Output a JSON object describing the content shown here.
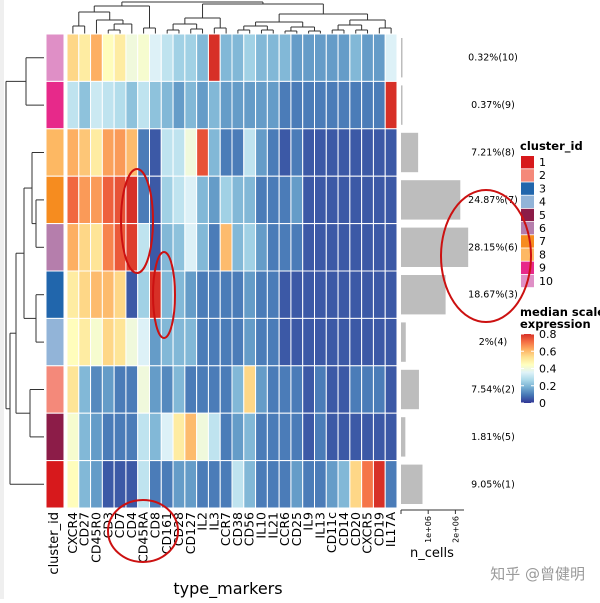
{
  "chart_data": {
    "type": "heatmap",
    "x_axis_title": "type_markers",
    "markers": [
      "CXCR4",
      "CD27",
      "CD45R0",
      "CD3",
      "CD7",
      "CD4",
      "CD45RA",
      "CD8",
      "CD161",
      "CD28",
      "CD127",
      "IL2",
      "IL3",
      "CCR7",
      "CD38",
      "CD56",
      "IL10",
      "IL21",
      "CCR6",
      "CD25",
      "IL9",
      "IL13",
      "CD11c",
      "CD14",
      "CD20",
      "CXCR5",
      "CD19",
      "IL17A"
    ],
    "clusters": [
      "10",
      "9",
      "8",
      "7",
      "6",
      "3",
      "4",
      "2",
      "5",
      "1"
    ],
    "row_annotation_label": "cluster_id",
    "cluster_colors": {
      "1": "#d7191c",
      "2": "#f4897a",
      "3": "#2166ac",
      "4": "#92b4d8",
      "5": "#8c1c48",
      "6": "#b57eac",
      "7": "#f68c1f",
      "8": "#fdb863",
      "9": "#e7298a",
      "10": "#df8fc6"
    },
    "values": [
      [
        0.55,
        0.5,
        0.62,
        0.45,
        0.5,
        0.4,
        0.42,
        0.35,
        0.3,
        0.25,
        0.25,
        0.2,
        0.9,
        0.2,
        0.2,
        0.25,
        0.2,
        0.2,
        0.2,
        0.15,
        0.15,
        0.15,
        0.15,
        0.15,
        0.2,
        0.15,
        0.15,
        0.35
      ],
      [
        0.3,
        0.22,
        0.32,
        0.3,
        0.28,
        0.22,
        0.3,
        0.22,
        0.2,
        0.15,
        0.2,
        0.15,
        0.2,
        0.15,
        0.15,
        0.15,
        0.15,
        0.15,
        0.1,
        0.1,
        0.1,
        0.1,
        0.1,
        0.1,
        0.1,
        0.1,
        0.1,
        0.95
      ],
      [
        0.62,
        0.58,
        0.5,
        0.64,
        0.65,
        0.6,
        0.1,
        0.05,
        0.3,
        0.3,
        0.4,
        0.75,
        0.2,
        0.1,
        0.1,
        0.3,
        0.15,
        0.1,
        0.05,
        0.1,
        0.05,
        0.05,
        0.05,
        0.05,
        0.05,
        0.05,
        0.05,
        0.05
      ],
      [
        0.72,
        0.65,
        0.65,
        0.73,
        0.75,
        0.82,
        0.1,
        0.05,
        0.25,
        0.3,
        0.35,
        0.2,
        0.15,
        0.25,
        0.2,
        0.2,
        0.1,
        0.1,
        0.1,
        0.15,
        0.05,
        0.05,
        0.05,
        0.05,
        0.05,
        0.05,
        0.05,
        0.05
      ],
      [
        0.62,
        0.55,
        0.52,
        0.68,
        0.74,
        0.78,
        0.3,
        0.05,
        0.2,
        0.22,
        0.35,
        0.2,
        0.1,
        0.6,
        0.2,
        0.25,
        0.15,
        0.1,
        0.1,
        0.1,
        0.05,
        0.05,
        0.05,
        0.05,
        0.05,
        0.05,
        0.05,
        0.05
      ],
      [
        0.5,
        0.55,
        0.6,
        0.6,
        0.55,
        0.05,
        0.25,
        0.95,
        0.2,
        0.2,
        0.15,
        0.1,
        0.1,
        0.1,
        0.1,
        0.15,
        0.1,
        0.1,
        0.05,
        0.05,
        0.05,
        0.05,
        0.05,
        0.05,
        0.05,
        0.05,
        0.05,
        0.05
      ],
      [
        0.45,
        0.5,
        0.42,
        0.55,
        0.52,
        0.4,
        0.35,
        0.15,
        0.2,
        0.2,
        0.2,
        0.1,
        0.1,
        0.1,
        0.1,
        0.15,
        0.1,
        0.1,
        0.05,
        0.05,
        0.05,
        0.05,
        0.05,
        0.05,
        0.05,
        0.05,
        0.05,
        0.05
      ],
      [
        0.52,
        0.2,
        0.12,
        0.15,
        0.1,
        0.1,
        0.4,
        0.15,
        0.12,
        0.2,
        0.1,
        0.1,
        0.1,
        0.1,
        0.2,
        0.55,
        0.15,
        0.1,
        0.1,
        0.1,
        0.05,
        0.1,
        0.05,
        0.05,
        0.1,
        0.1,
        0.1,
        0.05
      ],
      [
        0.42,
        0.2,
        0.15,
        0.1,
        0.1,
        0.1,
        0.3,
        0.2,
        0.35,
        0.5,
        0.6,
        0.4,
        0.3,
        0.1,
        0.15,
        0.2,
        0.1,
        0.1,
        0.1,
        0.1,
        0.05,
        0.1,
        0.05,
        0.05,
        0.05,
        0.05,
        0.05,
        0.05
      ],
      [
        0.45,
        0.2,
        0.15,
        0.05,
        0.05,
        0.05,
        0.3,
        0.1,
        0.1,
        0.15,
        0.15,
        0.1,
        0.1,
        0.1,
        0.3,
        0.2,
        0.1,
        0.1,
        0.1,
        0.15,
        0.1,
        0.1,
        0.15,
        0.2,
        0.55,
        0.7,
        0.85,
        0.1
      ]
    ],
    "color_scale": {
      "title": "median scaled\nexpression",
      "ticks": [
        0.8,
        0.6,
        0.4,
        0.2,
        0
      ],
      "range": [
        0,
        0.8
      ],
      "colors": [
        "#313695",
        "#4575b4",
        "#74add1",
        "#abd9e9",
        "#e0f3f8",
        "#ffffbf",
        "#fee090",
        "#fdae61",
        "#f46d43",
        "#d73027"
      ]
    },
    "bar_annotation": {
      "title": "n_cells",
      "axis_ticks": [
        "1e+06",
        "2e+06"
      ],
      "axis_max": 2500000,
      "values": [
        28000,
        34000,
        630000,
        2180000,
        2470000,
        1640000,
        175000,
        660000,
        160000,
        790000
      ],
      "labels": [
        "0.32%(10)",
        "0.37%(9)",
        "7.21%(8)",
        "24.87%(7)",
        "28.15%(6)",
        "18.67%(3)",
        "2%(4)",
        "7.54%(2)",
        "1.81%(5)",
        "9.05%(1)"
      ]
    },
    "legend_title": "cluster_id",
    "legend_entries": [
      "1",
      "2",
      "3",
      "4",
      "5",
      "6",
      "7",
      "8",
      "9",
      "10"
    ]
  },
  "watermark": "知乎 @曾健明"
}
